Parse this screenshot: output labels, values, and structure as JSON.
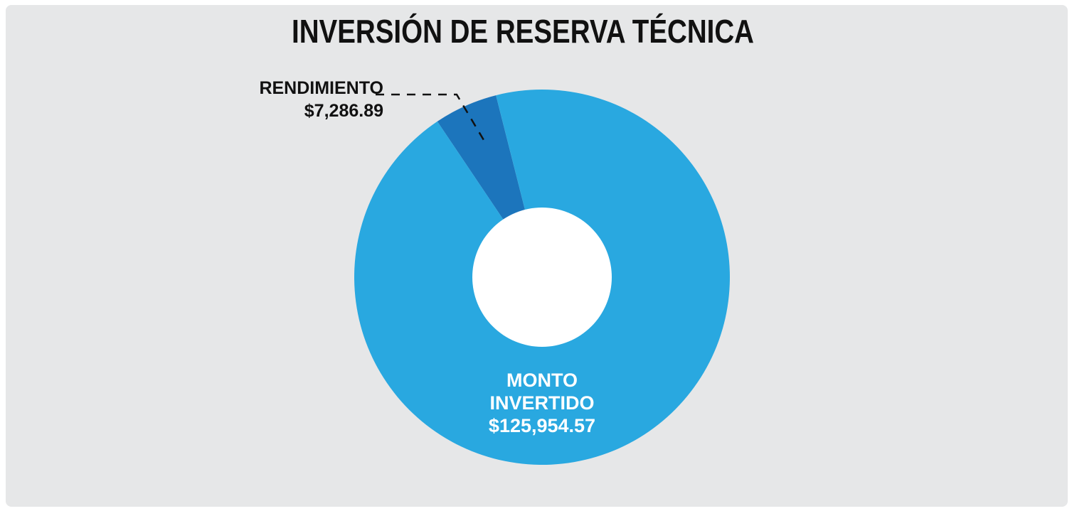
{
  "chart_data": {
    "type": "donut",
    "title": "INVERSIÓN DE RESERVA TÉCNICA",
    "categories": [
      "RENDIMIENTO",
      "MONTO INVERTIDO"
    ],
    "values": [
      7286.89,
      125954.57
    ],
    "value_labels": [
      "$7,286.89",
      "$125,954.57"
    ],
    "colors": [
      "#1c75bc",
      "#29a8e0"
    ]
  }
}
